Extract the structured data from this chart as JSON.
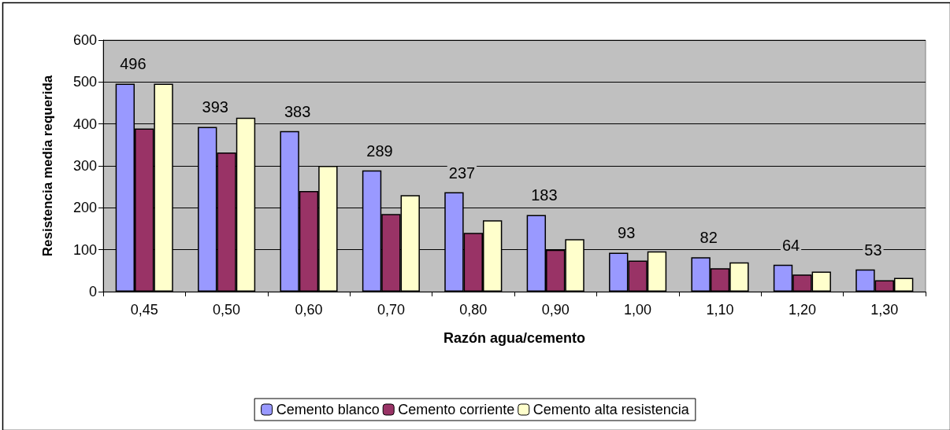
{
  "chart_data": {
    "type": "bar",
    "xlabel": "Razón agua/cemento",
    "ylabel": "Resistencia media requerida",
    "categories": [
      "0,45",
      "0,50",
      "0,60",
      "0,70",
      "0,80",
      "0,90",
      "1,00",
      "1,10",
      "1,20",
      "1,30"
    ],
    "series": [
      {
        "name": "Cemento blanco",
        "color": "#9999ff",
        "values": [
          496,
          393,
          383,
          289,
          237,
          183,
          93,
          82,
          64,
          53
        ],
        "value_labels": [
          "496",
          "393",
          "383",
          "289",
          "237",
          "183",
          "93",
          "82",
          "64",
          "53"
        ]
      },
      {
        "name": "Cemento corriente",
        "color": "#993366",
        "values": [
          389,
          332,
          240,
          185,
          140,
          100,
          74,
          56,
          41,
          27
        ]
      },
      {
        "name": "Cemento alta resistencia",
        "color": "#ffffcc",
        "values": [
          496,
          415,
          300,
          230,
          170,
          125,
          96,
          70,
          48,
          33
        ]
      }
    ],
    "ylim": [
      0,
      600
    ],
    "yticks": [
      0,
      100,
      200,
      300,
      400,
      500,
      600
    ],
    "grid": "y",
    "legend": "bottom"
  }
}
